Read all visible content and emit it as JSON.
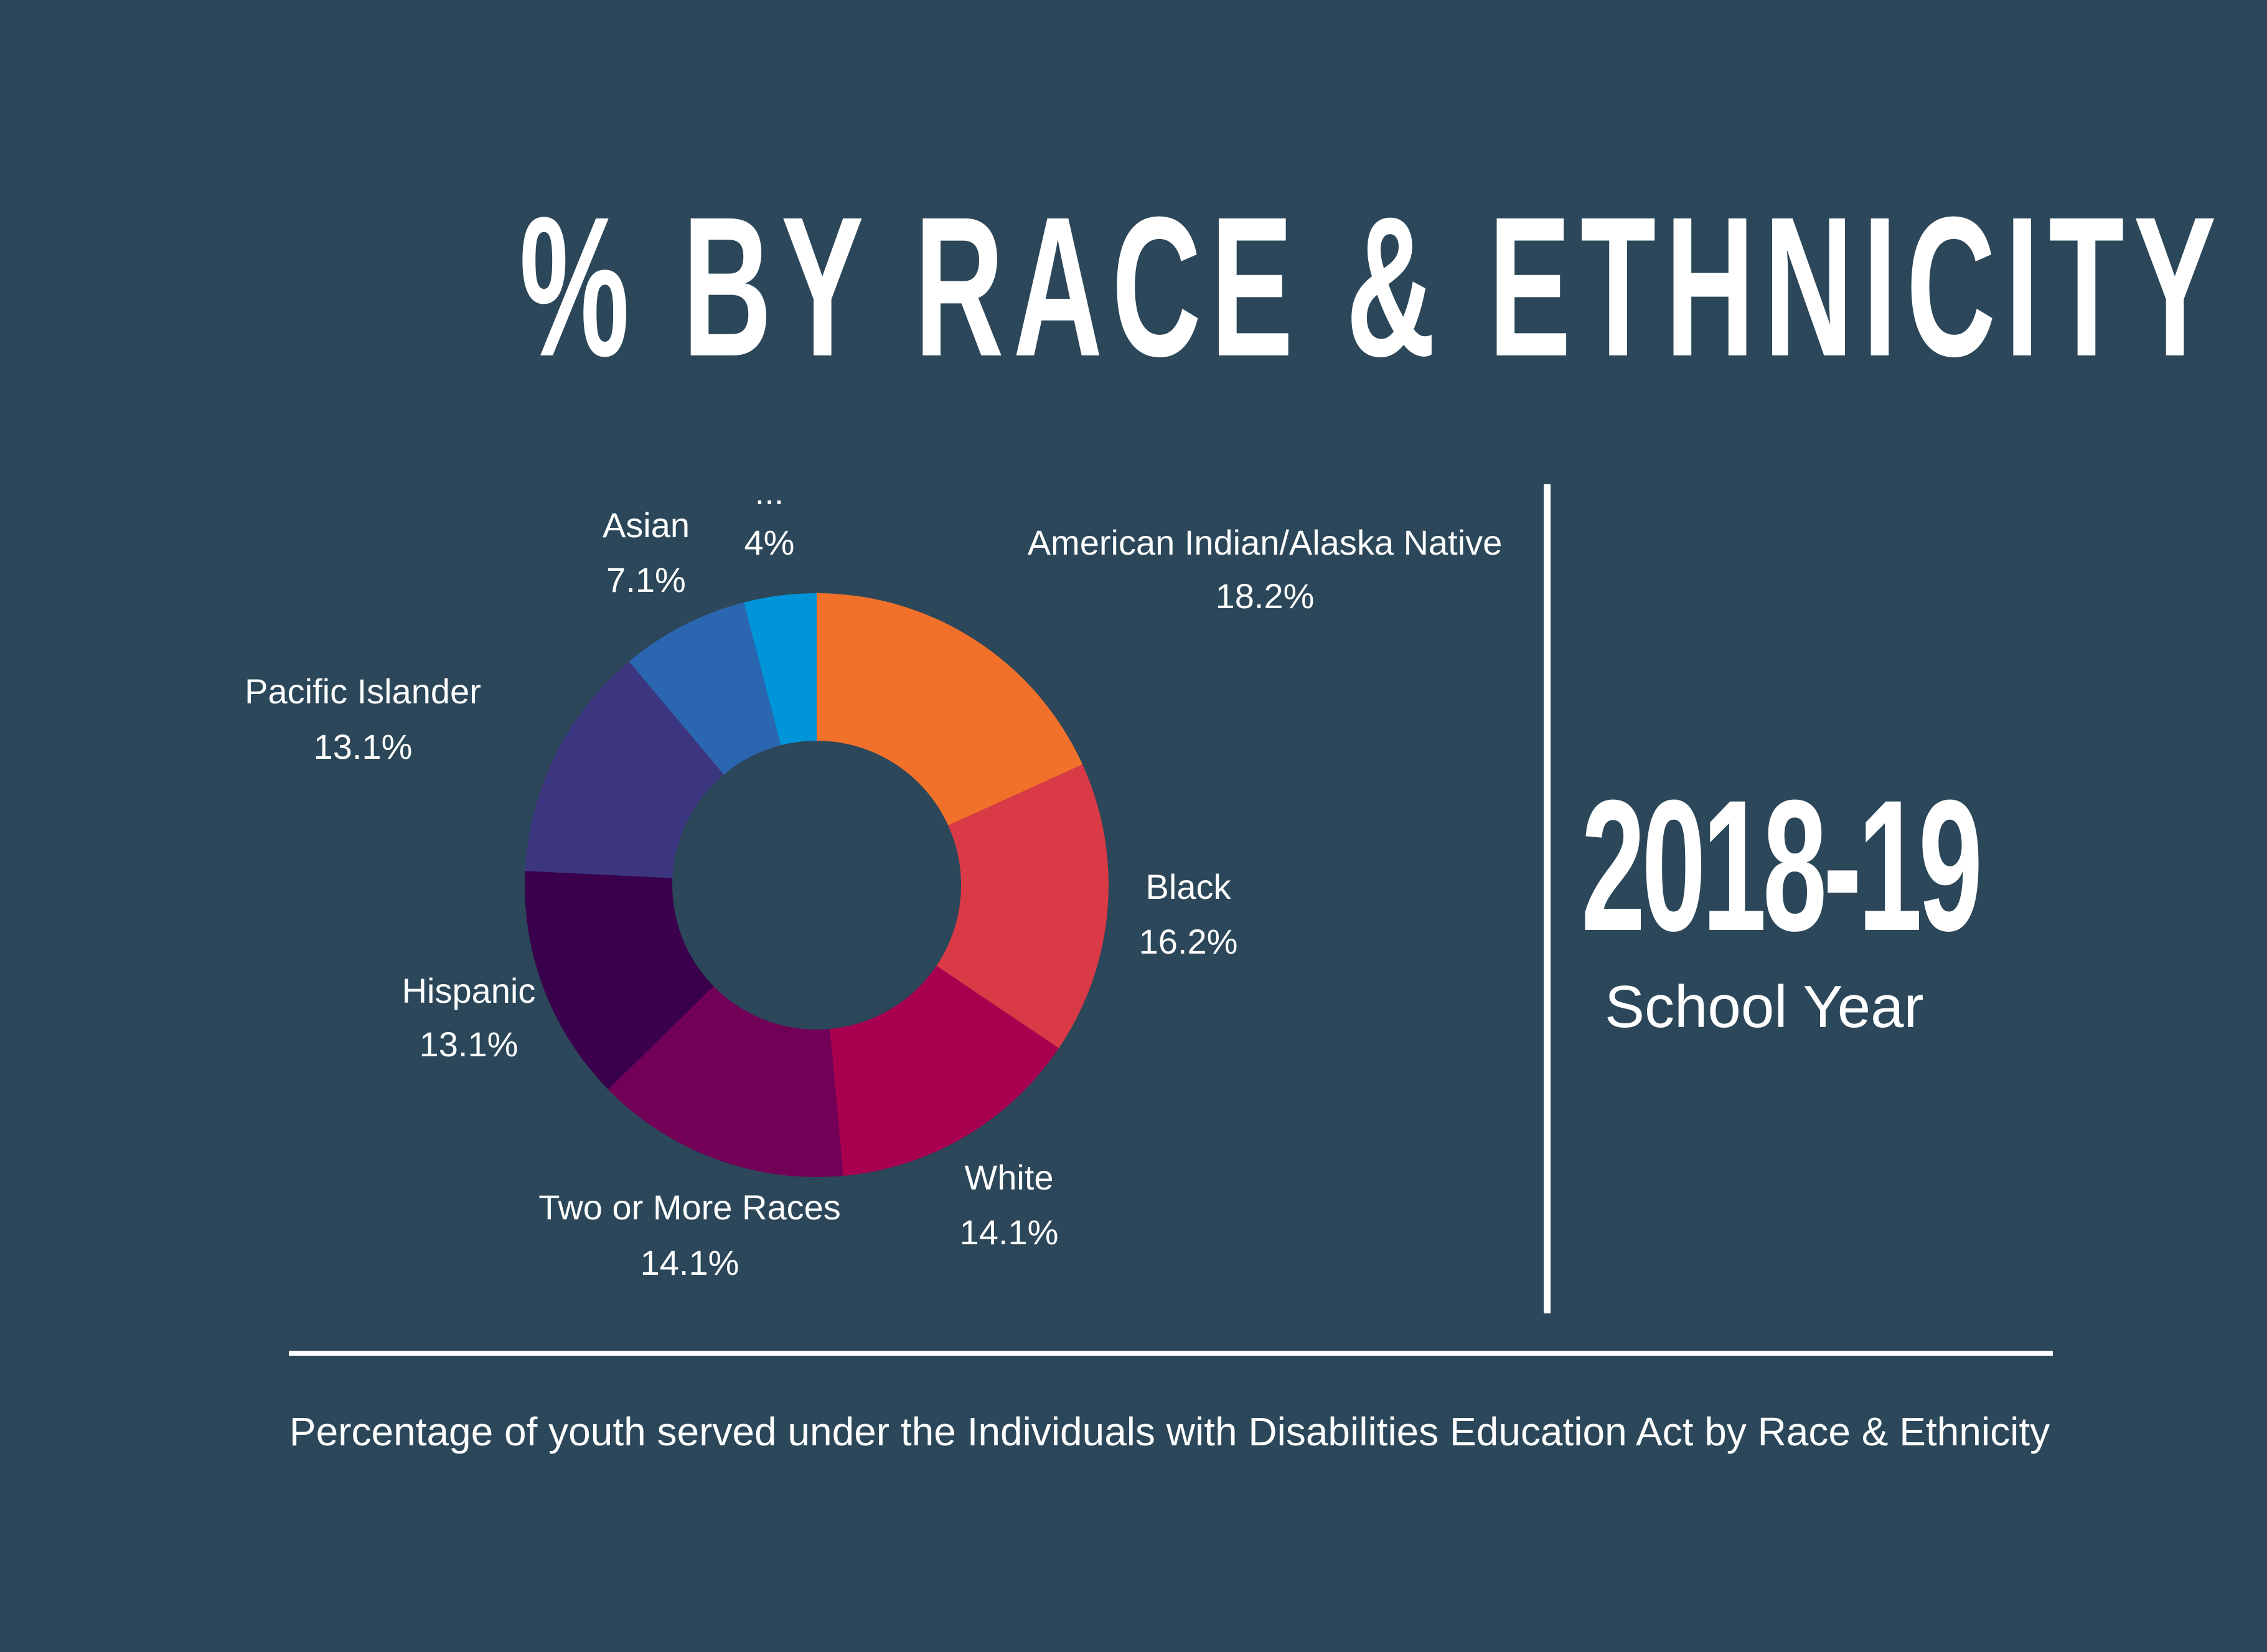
{
  "title": "% BY RACE & ETHNICITY",
  "year": "2018-19",
  "school_year_label": "School Year",
  "caption": "Percentage of youth served under the Individuals with Disabilities Education Act by Race & Ethnicity",
  "background_color": "#2b4759",
  "chart_data": {
    "type": "pie",
    "variant": "donut",
    "start": "top",
    "direction": "clockwise",
    "categories": [
      "American Indian/Alaska Native",
      "Black",
      "White",
      "Two or More Races",
      "Hispanic",
      "Pacific Islander",
      "Asian",
      "..."
    ],
    "values": [
      18.2,
      16.2,
      14.1,
      14.1,
      13.1,
      13.1,
      7.1,
      4
    ],
    "value_labels": [
      "18.2%",
      "16.2%",
      "14.1%",
      "14.1%",
      "13.1%",
      "13.1%",
      "7.1%",
      "4%"
    ],
    "colors": [
      "#f2712a",
      "#d93a46",
      "#a8004f",
      "#730057",
      "#3a004b",
      "#3c3680",
      "#2b67b1",
      "#0094d8"
    ]
  }
}
